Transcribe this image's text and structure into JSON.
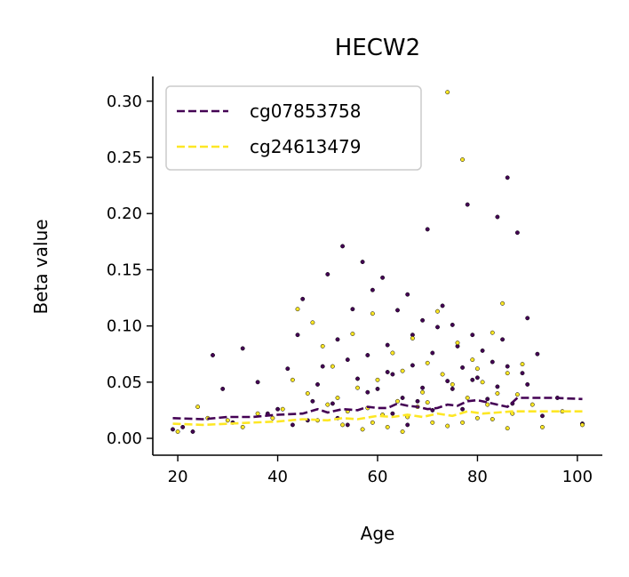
{
  "chart_data": {
    "type": "scatter",
    "title": "HECW2",
    "xlabel": "Age",
    "ylabel": "Beta value",
    "xlim": [
      15,
      105
    ],
    "ylim": [
      -0.015,
      0.322
    ],
    "xticks": [
      20,
      40,
      60,
      80,
      100
    ],
    "xtick_labels": [
      "20",
      "40",
      "60",
      "80",
      "100"
    ],
    "yticks": [
      0.0,
      0.05,
      0.1,
      0.15,
      0.2,
      0.25,
      0.3
    ],
    "ytick_labels": [
      "0.00",
      "0.05",
      "0.10",
      "0.15",
      "0.20",
      "0.25",
      "0.30"
    ],
    "grid": false,
    "legend_position": "upper-left",
    "series": [
      {
        "name": "cg07853758",
        "color": "#440154",
        "trend": [
          [
            19,
            0.018
          ],
          [
            25,
            0.017
          ],
          [
            30,
            0.019
          ],
          [
            35,
            0.019
          ],
          [
            40,
            0.021
          ],
          [
            45,
            0.022
          ],
          [
            48,
            0.026
          ],
          [
            50,
            0.023
          ],
          [
            53,
            0.026
          ],
          [
            56,
            0.025
          ],
          [
            58,
            0.028
          ],
          [
            60,
            0.027
          ],
          [
            62,
            0.027
          ],
          [
            64,
            0.031
          ],
          [
            66,
            0.029
          ],
          [
            68,
            0.028
          ],
          [
            70,
            0.026
          ],
          [
            72,
            0.027
          ],
          [
            74,
            0.03
          ],
          [
            76,
            0.029
          ],
          [
            78,
            0.033
          ],
          [
            80,
            0.034
          ],
          [
            82,
            0.032
          ],
          [
            84,
            0.03
          ],
          [
            86,
            0.028
          ],
          [
            88,
            0.036
          ],
          [
            90,
            0.036
          ],
          [
            95,
            0.036
          ],
          [
            101,
            0.035
          ]
        ],
        "points": [
          [
            19,
            0.008
          ],
          [
            21,
            0.01
          ],
          [
            23,
            0.006
          ],
          [
            27,
            0.074
          ],
          [
            29,
            0.044
          ],
          [
            31,
            0.014
          ],
          [
            33,
            0.08
          ],
          [
            36,
            0.05
          ],
          [
            38,
            0.022
          ],
          [
            40,
            0.026
          ],
          [
            42,
            0.062
          ],
          [
            44,
            0.092
          ],
          [
            45,
            0.124
          ],
          [
            46,
            0.016
          ],
          [
            48,
            0.048
          ],
          [
            50,
            0.146
          ],
          [
            51,
            0.031
          ],
          [
            52,
            0.088
          ],
          [
            53,
            0.171
          ],
          [
            54,
            0.012
          ],
          [
            55,
            0.115
          ],
          [
            57,
            0.157
          ],
          [
            58,
            0.074
          ],
          [
            59,
            0.132
          ],
          [
            60,
            0.044
          ],
          [
            61,
            0.143
          ],
          [
            62,
            0.083
          ],
          [
            63,
            0.057
          ],
          [
            64,
            0.114
          ],
          [
            65,
            0.036
          ],
          [
            66,
            0.128
          ],
          [
            67,
            0.065
          ],
          [
            68,
            0.033
          ],
          [
            69,
            0.105
          ],
          [
            70,
            0.186
          ],
          [
            71,
            0.076
          ],
          [
            72,
            0.099
          ],
          [
            74,
            0.051
          ],
          [
            75,
            0.044
          ],
          [
            76,
            0.082
          ],
          [
            77,
            0.063
          ],
          [
            78,
            0.208
          ],
          [
            79,
            0.092
          ],
          [
            80,
            0.054
          ],
          [
            82,
            0.035
          ],
          [
            83,
            0.068
          ],
          [
            84,
            0.197
          ],
          [
            85,
            0.088
          ],
          [
            86,
            0.232
          ],
          [
            87,
            0.031
          ],
          [
            88,
            0.183
          ],
          [
            89,
            0.058
          ],
          [
            90,
            0.107
          ],
          [
            92,
            0.075
          ],
          [
            93,
            0.02
          ],
          [
            96,
            0.036
          ],
          [
            101,
            0.013
          ],
          [
            49,
            0.064
          ],
          [
            56,
            0.053
          ],
          [
            63,
            0.022
          ],
          [
            73,
            0.118
          ],
          [
            81,
            0.078
          ],
          [
            47,
            0.033
          ],
          [
            52,
            0.018
          ],
          [
            58,
            0.041
          ],
          [
            66,
            0.012
          ],
          [
            77,
            0.026
          ],
          [
            84,
            0.046
          ],
          [
            43,
            0.012
          ],
          [
            67,
            0.092
          ],
          [
            71,
            0.025
          ],
          [
            79,
            0.052
          ],
          [
            86,
            0.064
          ],
          [
            90,
            0.048
          ],
          [
            54,
            0.07
          ],
          [
            62,
            0.059
          ],
          [
            69,
            0.045
          ],
          [
            75,
            0.101
          ]
        ]
      },
      {
        "name": "cg24613479",
        "color": "#fde725",
        "trend": [
          [
            19,
            0.013
          ],
          [
            25,
            0.012
          ],
          [
            30,
            0.013
          ],
          [
            35,
            0.014
          ],
          [
            40,
            0.015
          ],
          [
            45,
            0.017
          ],
          [
            50,
            0.016
          ],
          [
            53,
            0.018
          ],
          [
            56,
            0.017
          ],
          [
            60,
            0.02
          ],
          [
            63,
            0.019
          ],
          [
            66,
            0.021
          ],
          [
            69,
            0.019
          ],
          [
            72,
            0.022
          ],
          [
            75,
            0.02
          ],
          [
            78,
            0.024
          ],
          [
            81,
            0.022
          ],
          [
            84,
            0.023
          ],
          [
            87,
            0.024
          ],
          [
            90,
            0.024
          ],
          [
            95,
            0.024
          ],
          [
            101,
            0.024
          ]
        ],
        "points": [
          [
            20,
            0.006
          ],
          [
            24,
            0.028
          ],
          [
            26,
            0.018
          ],
          [
            30,
            0.016
          ],
          [
            33,
            0.01
          ],
          [
            36,
            0.022
          ],
          [
            39,
            0.018
          ],
          [
            41,
            0.026
          ],
          [
            43,
            0.052
          ],
          [
            44,
            0.115
          ],
          [
            46,
            0.04
          ],
          [
            47,
            0.103
          ],
          [
            49,
            0.082
          ],
          [
            50,
            0.03
          ],
          [
            51,
            0.064
          ],
          [
            53,
            0.012
          ],
          [
            55,
            0.093
          ],
          [
            56,
            0.045
          ],
          [
            58,
            0.027
          ],
          [
            59,
            0.111
          ],
          [
            60,
            0.052
          ],
          [
            62,
            0.01
          ],
          [
            63,
            0.076
          ],
          [
            64,
            0.033
          ],
          [
            65,
            0.06
          ],
          [
            66,
            0.019
          ],
          [
            67,
            0.089
          ],
          [
            69,
            0.041
          ],
          [
            70,
            0.067
          ],
          [
            71,
            0.014
          ],
          [
            72,
            0.113
          ],
          [
            73,
            0.057
          ],
          [
            74,
            0.308
          ],
          [
            75,
            0.048
          ],
          [
            76,
            0.085
          ],
          [
            77,
            0.248
          ],
          [
            78,
            0.036
          ],
          [
            79,
            0.07
          ],
          [
            80,
            0.062
          ],
          [
            81,
            0.05
          ],
          [
            82,
            0.03
          ],
          [
            83,
            0.094
          ],
          [
            84,
            0.04
          ],
          [
            85,
            0.12
          ],
          [
            86,
            0.058
          ],
          [
            87,
            0.022
          ],
          [
            88,
            0.039
          ],
          [
            89,
            0.066
          ],
          [
            91,
            0.03
          ],
          [
            93,
            0.01
          ],
          [
            97,
            0.024
          ],
          [
            101,
            0.012
          ],
          [
            48,
            0.016
          ],
          [
            52,
            0.036
          ],
          [
            57,
            0.008
          ],
          [
            61,
            0.021
          ],
          [
            68,
            0.028
          ],
          [
            74,
            0.011
          ],
          [
            80,
            0.018
          ],
          [
            86,
            0.009
          ],
          [
            54,
            0.024
          ],
          [
            59,
            0.014
          ],
          [
            65,
            0.006
          ],
          [
            70,
            0.032
          ],
          [
            77,
            0.014
          ],
          [
            83,
            0.017
          ]
        ]
      }
    ]
  }
}
